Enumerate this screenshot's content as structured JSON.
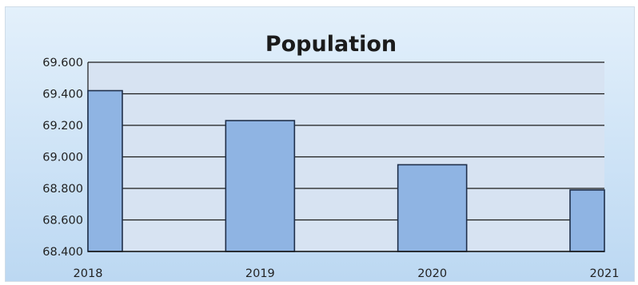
{
  "chart_data": {
    "type": "bar",
    "title": "Population",
    "categories": [
      "2018",
      "2019",
      "2020",
      "2021"
    ],
    "values": [
      69.42,
      69.23,
      68.95,
      68.79
    ],
    "ylim": [
      68.4,
      69.6
    ],
    "yticks": [
      "68.400",
      "68.600",
      "68.800",
      "69.000",
      "69.200",
      "69.400",
      "69.600"
    ],
    "xlabel": "",
    "ylabel": "",
    "grid": true,
    "legend": "none",
    "colors": {
      "bar_fill": "#8fb4e3",
      "bar_stroke": "#1f2f4a",
      "plot_bg": "#d7e3f2",
      "grid": "#1a1a1a"
    }
  }
}
